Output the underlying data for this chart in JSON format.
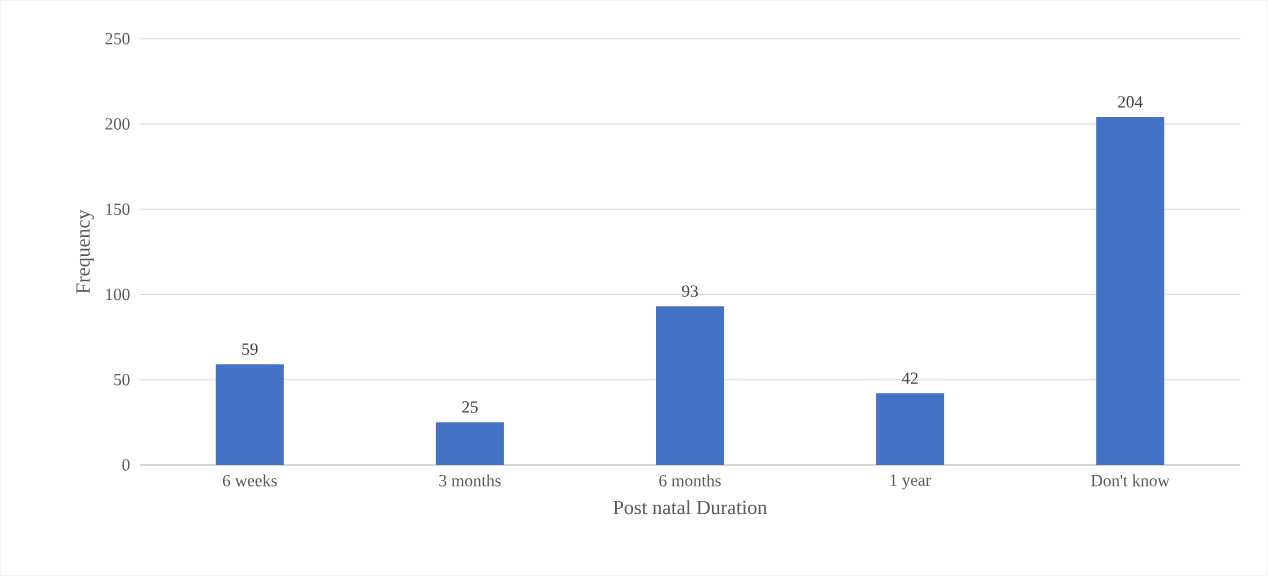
{
  "chart_data": {
    "type": "bar",
    "xlabel": "Post natal Duration",
    "ylabel": "Frequency",
    "categories": [
      "6 weeks",
      "3 months",
      "6 months",
      "1 year",
      "Don't know"
    ],
    "values": [
      59,
      25,
      93,
      42,
      204
    ],
    "color": "#4472c4",
    "ylim": [
      0,
      250
    ],
    "yticks": [
      0,
      50,
      100,
      150,
      200,
      250
    ],
    "grid": "y",
    "data_labels": true
  }
}
